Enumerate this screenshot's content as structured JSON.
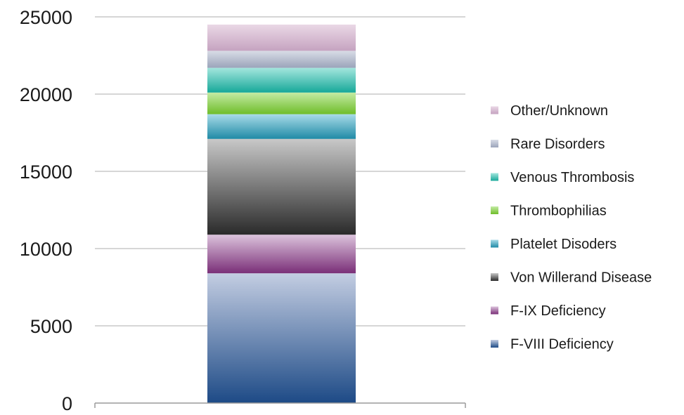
{
  "chart_data": {
    "type": "bar",
    "stacked": true,
    "categories": [
      ""
    ],
    "ylim": [
      0,
      25000
    ],
    "ytick_values": [
      0,
      5000,
      10000,
      15000,
      20000,
      25000
    ],
    "ytick_labels": [
      "0",
      "5000",
      "10000",
      "15000",
      "20000",
      "25000"
    ],
    "grid": true,
    "legend_position": "right",
    "series": [
      {
        "name": "F-VIII Deficiency",
        "values": [
          8400
        ],
        "color_light": "#c3cde2",
        "color_dark": "#1d4a86"
      },
      {
        "name": "F-IX Deficiency",
        "values": [
          2500
        ],
        "color_light": "#dcc3dc",
        "color_dark": "#7a2f78"
      },
      {
        "name": "Von Willerand Disease",
        "values": [
          6200
        ],
        "color_light": "#c8c8c8",
        "color_dark": "#2a2a2a"
      },
      {
        "name": "Platelet Disoders",
        "values": [
          1600
        ],
        "color_light": "#a9dbe8",
        "color_dark": "#1f8aa6"
      },
      {
        "name": "Thrombophilias",
        "values": [
          1400
        ],
        "color_light": "#c4eba4",
        "color_dark": "#6fbd2a"
      },
      {
        "name": "Venous Thrombosis",
        "values": [
          1600
        ],
        "color_light": "#a4e6de",
        "color_dark": "#16a899"
      },
      {
        "name": "Rare Disorders",
        "values": [
          1100
        ],
        "color_light": "#d8dce6",
        "color_dark": "#9ba4ba"
      },
      {
        "name": "Other/Unknown",
        "values": [
          1700
        ],
        "color_light": "#ead8e6",
        "color_dark": "#c5a3c0"
      }
    ],
    "legend_order": [
      7,
      6,
      5,
      4,
      3,
      2,
      1,
      0
    ]
  }
}
